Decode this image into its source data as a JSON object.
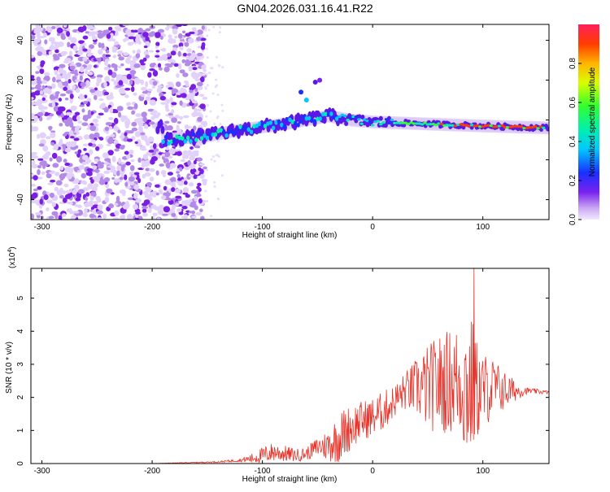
{
  "title": "GN04.2026.031.16.41.R22",
  "chart_data": [
    {
      "type": "heatmap",
      "name": "spectrogram",
      "xlabel": "Height of straight line (km)",
      "ylabel": "Frequency (Hz)",
      "xlim": [
        -310,
        160
      ],
      "ylim": [
        -50,
        48
      ],
      "xticks": [
        -300,
        -200,
        -100,
        0,
        100
      ],
      "yticks": [
        -40,
        -20,
        0,
        20,
        40
      ],
      "colorbar": {
        "label": "Normalized spectral amplitude",
        "range": [
          0,
          1
        ],
        "ticks": [
          0.0,
          0.2,
          0.4,
          0.6,
          0.8
        ]
      },
      "ridge": [
        {
          "x": -190,
          "y": -10
        },
        {
          "x": -150,
          "y": -8
        },
        {
          "x": -120,
          "y": -5
        },
        {
          "x": -80,
          "y": -2
        },
        {
          "x": -40,
          "y": 2
        },
        {
          "x": -20,
          "y": 0
        },
        {
          "x": 0,
          "y": -1
        },
        {
          "x": 50,
          "y": -2
        },
        {
          "x": 100,
          "y": -3
        },
        {
          "x": 160,
          "y": -4
        }
      ]
    },
    {
      "type": "line",
      "name": "snr",
      "xlabel": "Height of straight line (km)",
      "ylabel": "SNR (10 * v/v)",
      "scale_label": "(x10",
      "scale_exp": "4",
      "xlim": [
        -310,
        160
      ],
      "ylim": [
        0,
        5.9
      ],
      "xticks": [
        -300,
        -200,
        -100,
        0,
        100
      ],
      "yticks": [
        0,
        1,
        2,
        3,
        4,
        5
      ],
      "series": [
        {
          "name": "SNR",
          "color": "#e8332a",
          "x": [
            -310,
            -200,
            -140,
            -120,
            -110,
            -100,
            -90,
            -80,
            -70,
            -60,
            -50,
            -40,
            -30,
            -20,
            -10,
            0,
            10,
            20,
            30,
            40,
            50,
            60,
            70,
            80,
            85,
            90,
            95,
            100,
            110,
            120,
            130,
            140,
            160
          ],
          "base": [
            0.0,
            0.0,
            0.05,
            0.1,
            0.15,
            0.25,
            0.35,
            0.3,
            0.25,
            0.3,
            0.5,
            0.55,
            0.8,
            1.1,
            1.3,
            1.4,
            1.6,
            1.9,
            2.2,
            2.3,
            2.3,
            2.4,
            2.5,
            2.5,
            2.3,
            2.3,
            2.2,
            2.2,
            2.3,
            2.2,
            2.2,
            2.2,
            2.15
          ],
          "amp": [
            0.0,
            0.0,
            0.02,
            0.05,
            0.15,
            0.25,
            0.3,
            0.25,
            0.2,
            0.2,
            0.3,
            0.5,
            0.8,
            0.7,
            0.6,
            0.6,
            0.6,
            0.5,
            0.6,
            0.9,
            1.3,
            1.5,
            1.6,
            1.8,
            2.3,
            2.2,
            1.5,
            1.2,
            0.9,
            0.6,
            0.3,
            0.1,
            0.05
          ],
          "peak": {
            "x": 92,
            "y": 5.9
          }
        }
      ]
    }
  ],
  "colors": {
    "line": "#e8332a",
    "axis": "#000000"
  }
}
